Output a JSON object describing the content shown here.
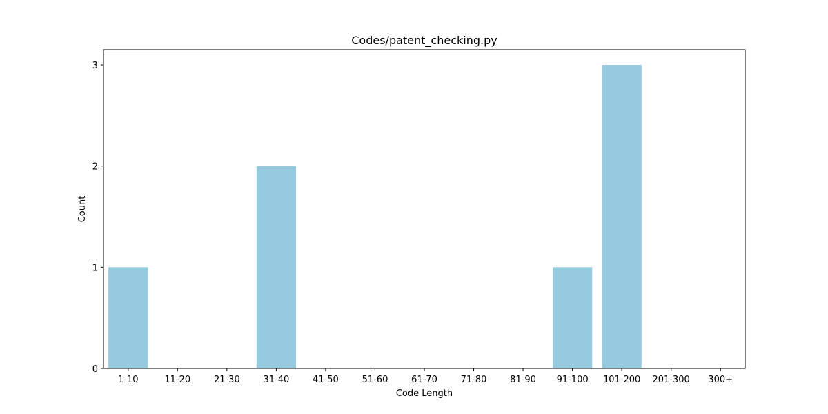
{
  "chart_data": {
    "type": "bar",
    "title": "Codes/patent_checking.py",
    "xlabel": "Code Length",
    "ylabel": "Count",
    "categories": [
      "1-10",
      "11-20",
      "21-30",
      "31-40",
      "41-50",
      "51-60",
      "61-70",
      "71-80",
      "81-90",
      "91-100",
      "101-200",
      "201-300",
      "300+"
    ],
    "values": [
      1,
      0,
      0,
      2,
      0,
      0,
      0,
      0,
      0,
      1,
      3,
      0,
      0
    ],
    "ylim": [
      0,
      3.15
    ],
    "yticks": [
      0,
      1,
      2,
      3
    ],
    "grid": false,
    "bar_color": "#96cade"
  }
}
